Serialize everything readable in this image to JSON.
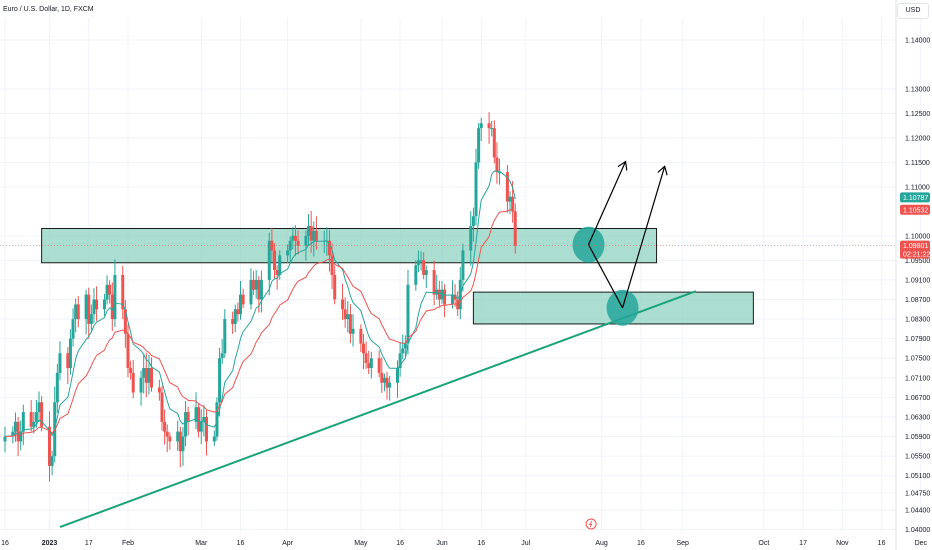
{
  "header": {
    "symbol_title": "Euro / U.S. Dollar, 1D, FXCM",
    "currency": "USD"
  },
  "price_tags": [
    {
      "label": "1.10787",
      "color": "#26a69a"
    },
    {
      "label": "1.10532",
      "color": "#ef5350"
    },
    {
      "label": "1.09801",
      "sub": "02:21:22",
      "color": "#ef5350"
    }
  ],
  "colors": {
    "up": "#26a69a",
    "down": "#ef5350",
    "zone_fill": "#8fd3c0",
    "zone_stroke": "#1a1a1a",
    "trendline": "#1aa37a",
    "ema_fast": "#26a69a",
    "ema_slow": "#ef5350",
    "circle": "#26a69a"
  },
  "chart_data": {
    "type": "candlestick",
    "symbol": "Euro / U.S. Dollar",
    "interval": "1D",
    "source": "FXCM",
    "ylim": [
      1.0395,
      1.1445
    ],
    "y_ticks": [
      "1.14000",
      "1.13000",
      "1.12500",
      "1.12000",
      "1.11500",
      "1.11000",
      "1.10000",
      "1.09500",
      "1.09100",
      "1.08700",
      "1.08300",
      "1.07900",
      "1.07500",
      "1.07100",
      "1.06700",
      "1.06300",
      "1.05900",
      "1.05500",
      "1.05100",
      "1.04750",
      "1.04400",
      "1.04000"
    ],
    "x_ticks": [
      {
        "label": "16",
        "date": "2022-12-16"
      },
      {
        "label": "2023",
        "date": "2023-01-02",
        "bold": true
      },
      {
        "label": "17",
        "date": "2023-01-17"
      },
      {
        "label": "Feb",
        "date": "2023-02-01"
      },
      {
        "label": "Mar",
        "date": "2023-03-01"
      },
      {
        "label": "16",
        "date": "2023-03-16"
      },
      {
        "label": "Apr",
        "date": "2023-04-03"
      },
      {
        "label": "May",
        "date": "2023-05-01"
      },
      {
        "label": "16",
        "date": "2023-05-16"
      },
      {
        "label": "Jun",
        "date": "2023-06-01"
      },
      {
        "label": "16",
        "date": "2023-06-16"
      },
      {
        "label": "Jul",
        "date": "2023-07-03"
      },
      {
        "label": "Aug",
        "date": "2023-08-01"
      },
      {
        "label": "16",
        "date": "2023-08-16"
      },
      {
        "label": "Sep",
        "date": "2023-09-01"
      },
      {
        "label": "Oct",
        "date": "2023-10-02"
      },
      {
        "label": "17",
        "date": "2023-10-17"
      },
      {
        "label": "Nov",
        "date": "2023-11-01"
      },
      {
        "label": "16",
        "date": "2023-11-16"
      },
      {
        "label": "Dec",
        "date": "2023-12-01"
      }
    ],
    "closes": [
      1.059,
      1.06,
      1.062,
      1.058,
      1.06,
      1.064,
      1.061,
      1.062,
      1.064,
      1.066,
      1.061,
      1.053,
      1.055,
      1.066,
      1.072,
      1.076,
      1.073,
      1.079,
      1.083,
      1.086,
      1.083,
      1.088,
      1.082,
      1.084,
      1.087,
      1.085,
      1.087,
      1.09,
      1.088,
      1.083,
      1.092,
      1.085,
      1.08,
      1.073,
      1.072,
      1.068,
      1.071,
      1.073,
      1.07,
      1.073,
      1.069,
      1.068,
      1.062,
      1.06,
      1.059,
      1.058,
      1.06,
      1.056,
      1.059,
      1.064,
      1.062,
      1.065,
      1.06,
      1.062,
      1.063,
      1.058,
      1.059,
      1.066,
      1.075,
      1.076,
      1.083,
      1.082,
      1.085,
      1.084,
      1.088,
      1.086,
      1.091,
      1.089,
      1.091,
      1.087,
      1.091,
      1.099,
      1.097,
      1.093,
      1.092,
      1.096,
      1.097,
      1.099,
      1.1,
      1.099,
      1.098,
      1.1,
      1.102,
      1.099,
      1.101,
      1.099,
      1.099,
      1.099,
      1.096,
      1.092,
      1.087,
      1.085,
      1.083,
      1.084,
      1.08,
      1.081,
      1.078,
      1.076,
      1.074,
      1.073,
      1.075,
      1.072,
      1.07,
      1.071,
      1.069,
      1.07,
      1.073,
      1.076,
      1.077,
      1.078,
      1.09,
      1.094,
      1.095,
      1.095,
      1.092,
      1.093,
      1.088,
      1.089,
      1.087,
      1.089,
      1.086,
      1.088,
      1.087,
      1.085,
      1.091,
      1.097,
      1.102,
      1.104,
      1.115,
      1.122,
      1.123,
      1.122,
      1.122,
      1.116,
      1.113,
      1.113,
      1.107,
      1.108,
      1.105,
      1.098
    ],
    "zones": [
      {
        "name": "upper-resistance-zone",
        "top": 1.1015,
        "bottom": 1.0945,
        "from": "2022-12-30",
        "to": "2023-08-22"
      },
      {
        "name": "lower-demand-zone",
        "top": 1.0885,
        "bottom": 1.082,
        "from": "2023-06-13",
        "to": "2023-09-28"
      }
    ],
    "trendline": {
      "from": {
        "date": "2023-01-06",
        "price": 1.0405
      },
      "to": {
        "date": "2023-09-06",
        "price": 1.0887
      }
    },
    "projection": {
      "circles": [
        {
          "date": "2023-07-27",
          "price": 1.0982
        },
        {
          "date": "2023-08-09",
          "price": 1.0853
        }
      ],
      "path": [
        {
          "date": "2023-07-27",
          "price": 1.0982
        },
        {
          "date": "2023-08-09",
          "price": 1.0853
        },
        {
          "date": "2023-08-25",
          "price": 1.114
        }
      ],
      "first_bounce_target": {
        "date": "2023-08-10",
        "price": 1.115
      }
    }
  }
}
